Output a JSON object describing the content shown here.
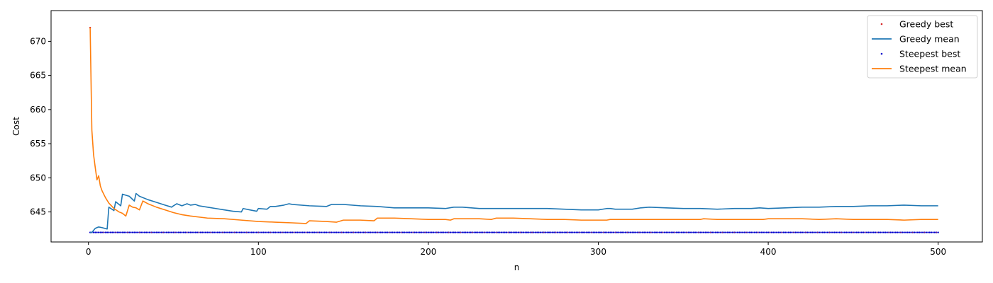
{
  "chart_data": {
    "type": "line",
    "xlabel": "n",
    "ylabel": "Cost",
    "xlim": [
      -22,
      526
    ],
    "ylim": [
      640.6,
      674.5
    ],
    "xticks": [
      0,
      100,
      200,
      300,
      400,
      500
    ],
    "yticks": [
      645,
      650,
      655,
      660,
      665,
      670
    ],
    "grid": false,
    "legend_position": "top-right",
    "legend": [
      "Greedy best",
      "Greedy mean",
      "Steepest best",
      "Steepest mean"
    ],
    "series": [
      {
        "name": "Greedy best",
        "style": "points",
        "color": "#d62728",
        "x": [
          1,
          500
        ],
        "y": [
          672,
          642
        ],
        "note_values": {
          "first": 672,
          "rest": 642
        }
      },
      {
        "name": "Greedy mean",
        "style": "line",
        "color": "#1f77b4",
        "x": [
          1,
          2,
          4,
          6,
          8,
          11,
          12,
          15,
          16,
          19,
          20,
          24,
          27,
          28,
          30,
          35,
          40,
          45,
          49,
          50,
          52,
          55,
          58,
          60,
          63,
          65,
          70,
          75,
          80,
          85,
          90,
          91,
          95,
          99,
          100,
          105,
          107,
          110,
          115,
          118,
          120,
          130,
          140,
          143,
          145,
          150,
          160,
          170,
          180,
          190,
          200,
          210,
          215,
          220,
          230,
          240,
          250,
          260,
          270,
          280,
          290,
          300,
          305,
          307,
          310,
          320,
          325,
          330,
          340,
          350,
          360,
          370,
          380,
          390,
          395,
          400,
          410,
          420,
          430,
          440,
          450,
          460,
          470,
          480,
          490,
          500
        ],
        "y": [
          642,
          642,
          642.6,
          642.8,
          642.7,
          642.5,
          645.7,
          645.2,
          646.5,
          645.9,
          647.6,
          647.3,
          646.6,
          647.7,
          647.3,
          646.8,
          646.4,
          646.0,
          645.7,
          645.9,
          646.2,
          645.9,
          646.2,
          646.0,
          646.1,
          645.9,
          645.7,
          645.5,
          645.3,
          645.1,
          645.0,
          645.5,
          645.3,
          645.1,
          645.5,
          645.4,
          645.8,
          645.8,
          646.0,
          646.2,
          646.1,
          645.9,
          645.8,
          646.1,
          646.1,
          646.1,
          645.9,
          645.8,
          645.6,
          645.6,
          645.6,
          645.5,
          645.7,
          645.7,
          645.5,
          645.5,
          645.5,
          645.5,
          645.5,
          645.4,
          645.3,
          645.3,
          645.5,
          645.5,
          645.4,
          645.4,
          645.6,
          645.7,
          645.6,
          645.5,
          645.5,
          645.4,
          645.5,
          645.5,
          645.6,
          645.5,
          645.6,
          645.7,
          645.7,
          645.8,
          645.8,
          645.9,
          645.9,
          646.0,
          645.9,
          645.9
        ]
      },
      {
        "name": "Steepest best",
        "style": "points",
        "color": "#0000cc",
        "x": [
          1,
          500
        ],
        "y": [
          642,
          642
        ]
      },
      {
        "name": "Steepest mean",
        "style": "line",
        "color": "#ff7f0e",
        "x": [
          1,
          2,
          3,
          4,
          5,
          6,
          7,
          8,
          10,
          12,
          15,
          18,
          20,
          22,
          24,
          26,
          28,
          30,
          32,
          35,
          40,
          45,
          50,
          55,
          60,
          70,
          80,
          90,
          100,
          110,
          120,
          128,
          130,
          140,
          146,
          150,
          160,
          168,
          170,
          180,
          190,
          200,
          210,
          213,
          215,
          220,
          230,
          237,
          240,
          250,
          260,
          270,
          280,
          290,
          300,
          305,
          307,
          320,
          330,
          340,
          350,
          360,
          362,
          370,
          380,
          397,
          400,
          410,
          420,
          430,
          440,
          450,
          460,
          470,
          480,
          490,
          500
        ],
        "y": [
          672,
          657,
          653.4,
          651.5,
          649.7,
          650.3,
          648.8,
          648.1,
          647.1,
          646.3,
          645.5,
          645.0,
          644.8,
          644.4,
          646.0,
          645.7,
          645.6,
          645.3,
          646.6,
          646.2,
          645.7,
          645.3,
          644.9,
          644.6,
          644.4,
          644.1,
          644.0,
          643.8,
          643.6,
          643.5,
          643.4,
          643.3,
          643.7,
          643.6,
          643.5,
          643.8,
          643.8,
          643.7,
          644.1,
          644.1,
          644.0,
          643.9,
          643.9,
          643.8,
          644.0,
          644.0,
          644.0,
          643.9,
          644.1,
          644.1,
          644.0,
          643.9,
          643.9,
          643.8,
          643.8,
          643.8,
          643.9,
          643.9,
          643.9,
          643.9,
          643.9,
          643.9,
          644.0,
          643.9,
          643.9,
          643.9,
          644.0,
          644.0,
          644.0,
          643.9,
          644.0,
          643.9,
          643.9,
          643.9,
          643.8,
          643.9,
          643.9
        ]
      }
    ]
  }
}
